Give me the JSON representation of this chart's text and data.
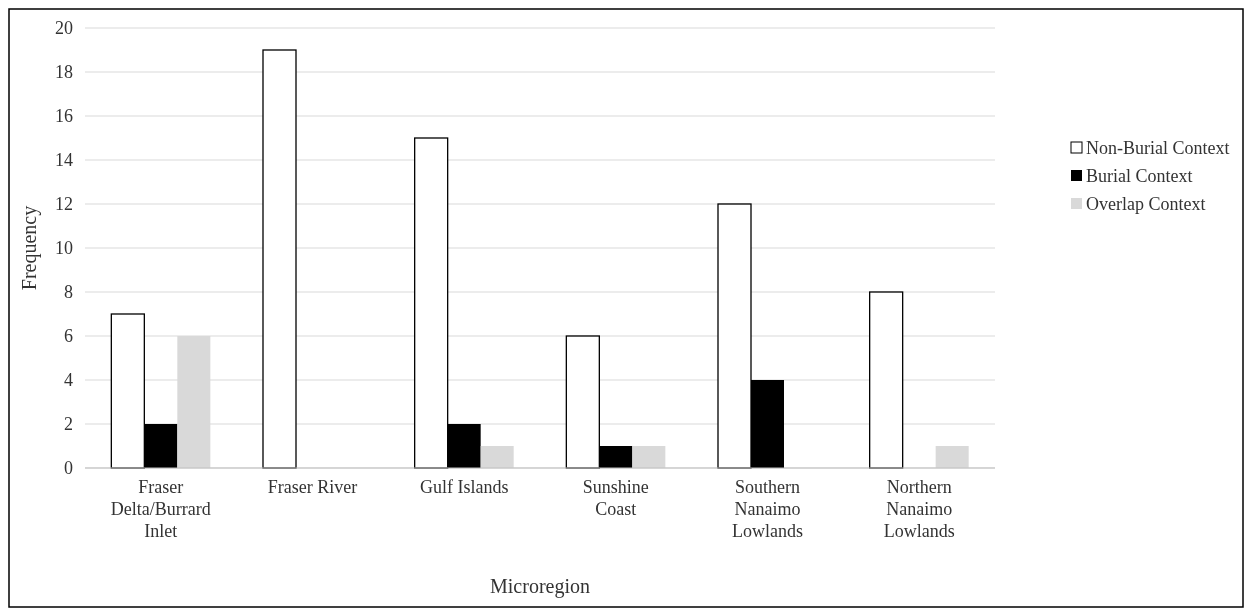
{
  "chart_data": {
    "type": "bar",
    "xlabel": "Microregion",
    "ylabel": "Frequency",
    "categories": [
      "Fraser Delta/Burrard Inlet",
      "Fraser River",
      "Gulf Islands",
      "Sunshine Coast",
      "Southern Nanaimo Lowlands",
      "Northern Nanaimo Lowlands"
    ],
    "series": [
      {
        "name": "Non-Burial Context",
        "color": "#ffffff",
        "values": [
          7,
          19,
          15,
          6,
          12,
          8
        ]
      },
      {
        "name": "Burial Context",
        "color": "#000000",
        "values": [
          2,
          0,
          2,
          1,
          4,
          0
        ]
      },
      {
        "name": "Overlap Context",
        "color": "#d9d9d9",
        "values": [
          6,
          0,
          1,
          1,
          0,
          1
        ]
      }
    ],
    "ylim": [
      0,
      20
    ],
    "yticks": [
      0,
      2,
      4,
      6,
      8,
      10,
      12,
      14,
      16,
      18,
      20
    ],
    "grid": "y",
    "legend": "right"
  }
}
